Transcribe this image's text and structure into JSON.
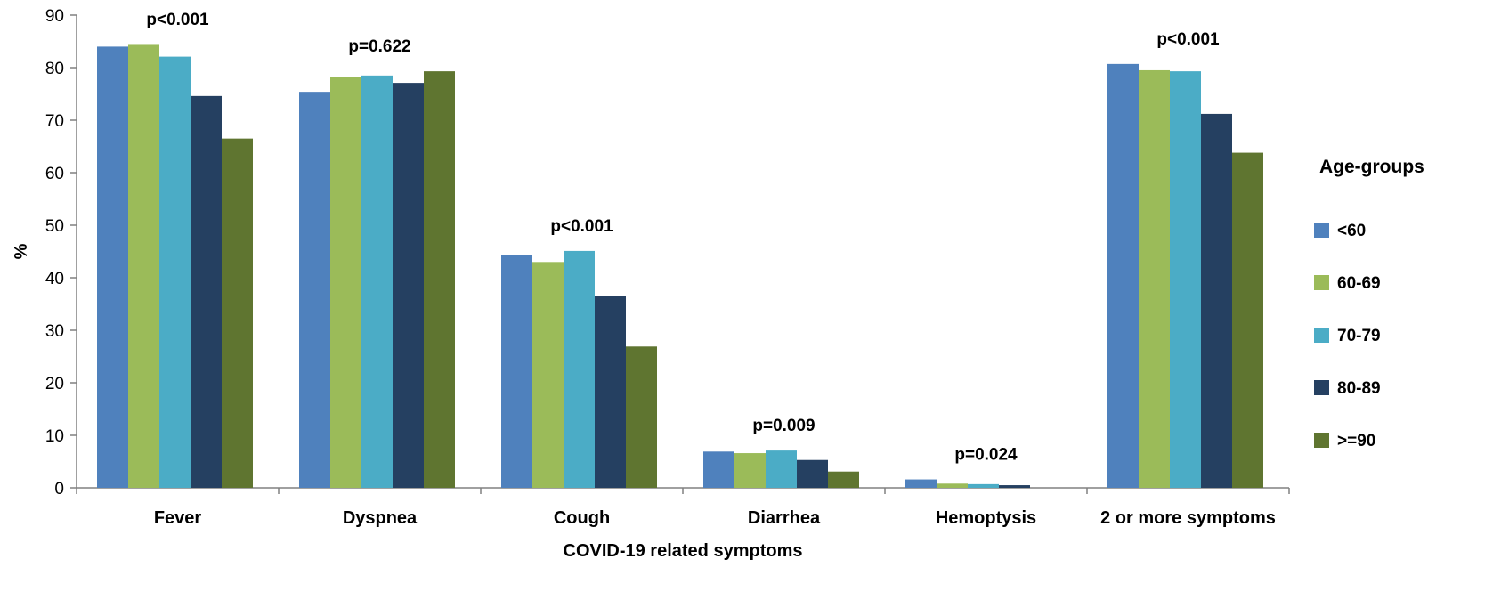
{
  "chart_data": {
    "type": "bar",
    "title": "",
    "xlabel": "COVID-19 related symptoms",
    "ylabel": "%",
    "ylim": [
      0,
      90
    ],
    "yticks": [
      0,
      10,
      20,
      30,
      40,
      50,
      60,
      70,
      80,
      90
    ],
    "grid": false,
    "legend_position": "right",
    "legend_title": "Age-groups",
    "categories": [
      "Fever",
      "Dyspnea",
      "Cough",
      "Diarrhea",
      "Hemoptysis",
      "2 or more symptoms"
    ],
    "p_values": [
      "p<0.001",
      "p=0.622",
      "p<0.001",
      "p=0.009",
      "p=0.024",
      "p<0.001"
    ],
    "series": [
      {
        "name": "<60",
        "color": "#4f81bd",
        "values": [
          84.0,
          75.4,
          44.3,
          6.9,
          1.6,
          80.7
        ]
      },
      {
        "name": "60-69",
        "color": "#9bbb59",
        "values": [
          84.5,
          78.3,
          43.0,
          6.6,
          0.8,
          79.5
        ]
      },
      {
        "name": "70-79",
        "color": "#4bacc6",
        "values": [
          82.1,
          78.5,
          45.1,
          7.1,
          0.7,
          79.3
        ]
      },
      {
        "name": "80-89",
        "color": "#254061",
        "values": [
          74.6,
          77.1,
          36.5,
          5.3,
          0.5,
          71.2
        ]
      },
      {
        "name": ">=90",
        "color": "#5f7530",
        "values": [
          66.5,
          79.3,
          26.9,
          3.1,
          0.0,
          63.8
        ]
      }
    ]
  }
}
